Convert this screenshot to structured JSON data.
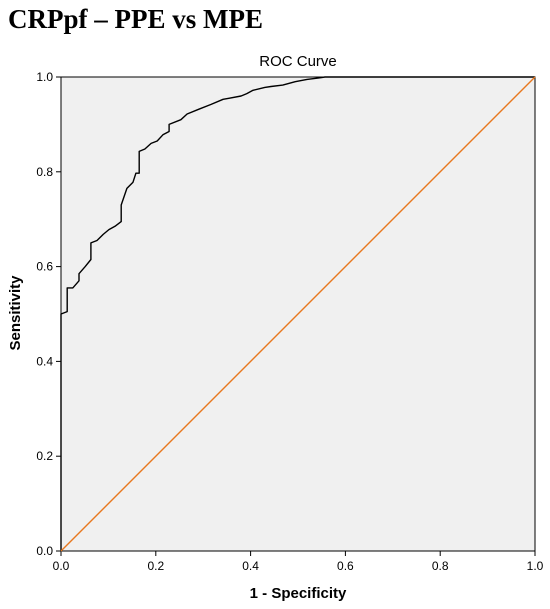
{
  "heading": "CRPpf – PPE vs MPE",
  "chart_data": {
    "type": "line",
    "title": "ROC Curve",
    "xlabel": "1 - Specificity",
    "ylabel": "Sensitivity",
    "xlim": [
      0,
      1
    ],
    "ylim": [
      0,
      1
    ],
    "x_ticks": [
      "0.0",
      "0.2",
      "0.4",
      "0.6",
      "0.8",
      "1.0"
    ],
    "y_ticks": [
      "0.0",
      "0.2",
      "0.4",
      "0.6",
      "0.8",
      "1.0"
    ],
    "grid": false,
    "plot_background": "#f0f0f0",
    "series": [
      {
        "color": "#000000",
        "x": [
          0.0,
          0.0,
          0.013,
          0.013,
          0.025,
          0.038,
          0.038,
          0.051,
          0.063,
          0.063,
          0.076,
          0.089,
          0.101,
          0.114,
          0.127,
          0.127,
          0.139,
          0.152,
          0.158,
          0.165,
          0.165,
          0.177,
          0.19,
          0.203,
          0.215,
          0.228,
          0.228,
          0.253,
          0.266,
          0.291,
          0.316,
          0.342,
          0.354,
          0.38,
          0.392,
          0.405,
          0.43,
          0.443,
          0.468,
          0.494,
          0.519,
          0.544,
          0.557,
          0.582,
          0.62,
          0.7,
          0.8,
          0.9,
          1.0
        ],
        "y": [
          0.0,
          0.5,
          0.505,
          0.555,
          0.555,
          0.57,
          0.585,
          0.6,
          0.615,
          0.65,
          0.655,
          0.668,
          0.678,
          0.685,
          0.695,
          0.73,
          0.765,
          0.778,
          0.797,
          0.797,
          0.843,
          0.848,
          0.86,
          0.865,
          0.878,
          0.885,
          0.9,
          0.91,
          0.922,
          0.932,
          0.942,
          0.953,
          0.955,
          0.96,
          0.965,
          0.972,
          0.978,
          0.98,
          0.983,
          0.99,
          0.995,
          0.998,
          1.0,
          1.0,
          1.0,
          1.0,
          1.0,
          1.0,
          1.0
        ]
      },
      {
        "color": "#e8781f",
        "x": [
          0,
          1
        ],
        "y": [
          0,
          1
        ]
      }
    ]
  }
}
